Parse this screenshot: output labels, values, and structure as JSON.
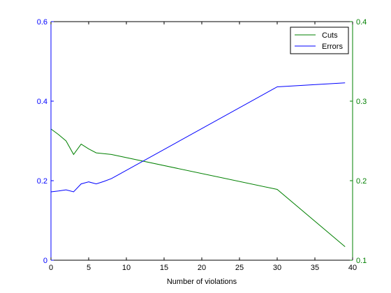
{
  "chart_data": {
    "type": "line",
    "title": "",
    "xlabel": "Number of violations",
    "x_ticks": [
      0,
      5,
      10,
      15,
      20,
      25,
      30,
      35,
      40
    ],
    "xlim": [
      0,
      40
    ],
    "left_axis": {
      "color": "#0000ff",
      "ylim": [
        0,
        0.6
      ],
      "ticks": [
        0,
        0.2,
        0.4,
        0.6
      ],
      "tick_labels": [
        "0",
        "0.2",
        "0.4",
        "0.6"
      ]
    },
    "right_axis": {
      "color": "#008000",
      "ylim": [
        0.1,
        0.4
      ],
      "ticks": [
        0.1,
        0.2,
        0.3,
        0.4
      ],
      "tick_labels": [
        "0.1",
        "0.2",
        "0.3",
        "0.4"
      ]
    },
    "grid": false,
    "legend_position": "top-right",
    "series": [
      {
        "name": "Cuts",
        "axis": "right",
        "color": "#008000",
        "x": [
          0,
          1,
          2,
          3,
          4,
          5,
          6,
          7,
          8,
          30,
          39
        ],
        "y": [
          0.265,
          0.258,
          0.25,
          0.233,
          0.246,
          0.24,
          0.235,
          0.234,
          0.233,
          0.189,
          0.117
        ]
      },
      {
        "name": "Errors",
        "axis": "left",
        "color": "#0000ff",
        "x": [
          0,
          1,
          2,
          3,
          4,
          5,
          6,
          7,
          8,
          30,
          39
        ],
        "y": [
          0.172,
          0.174,
          0.177,
          0.172,
          0.192,
          0.197,
          0.192,
          0.198,
          0.205,
          0.436,
          0.446
        ]
      }
    ]
  }
}
